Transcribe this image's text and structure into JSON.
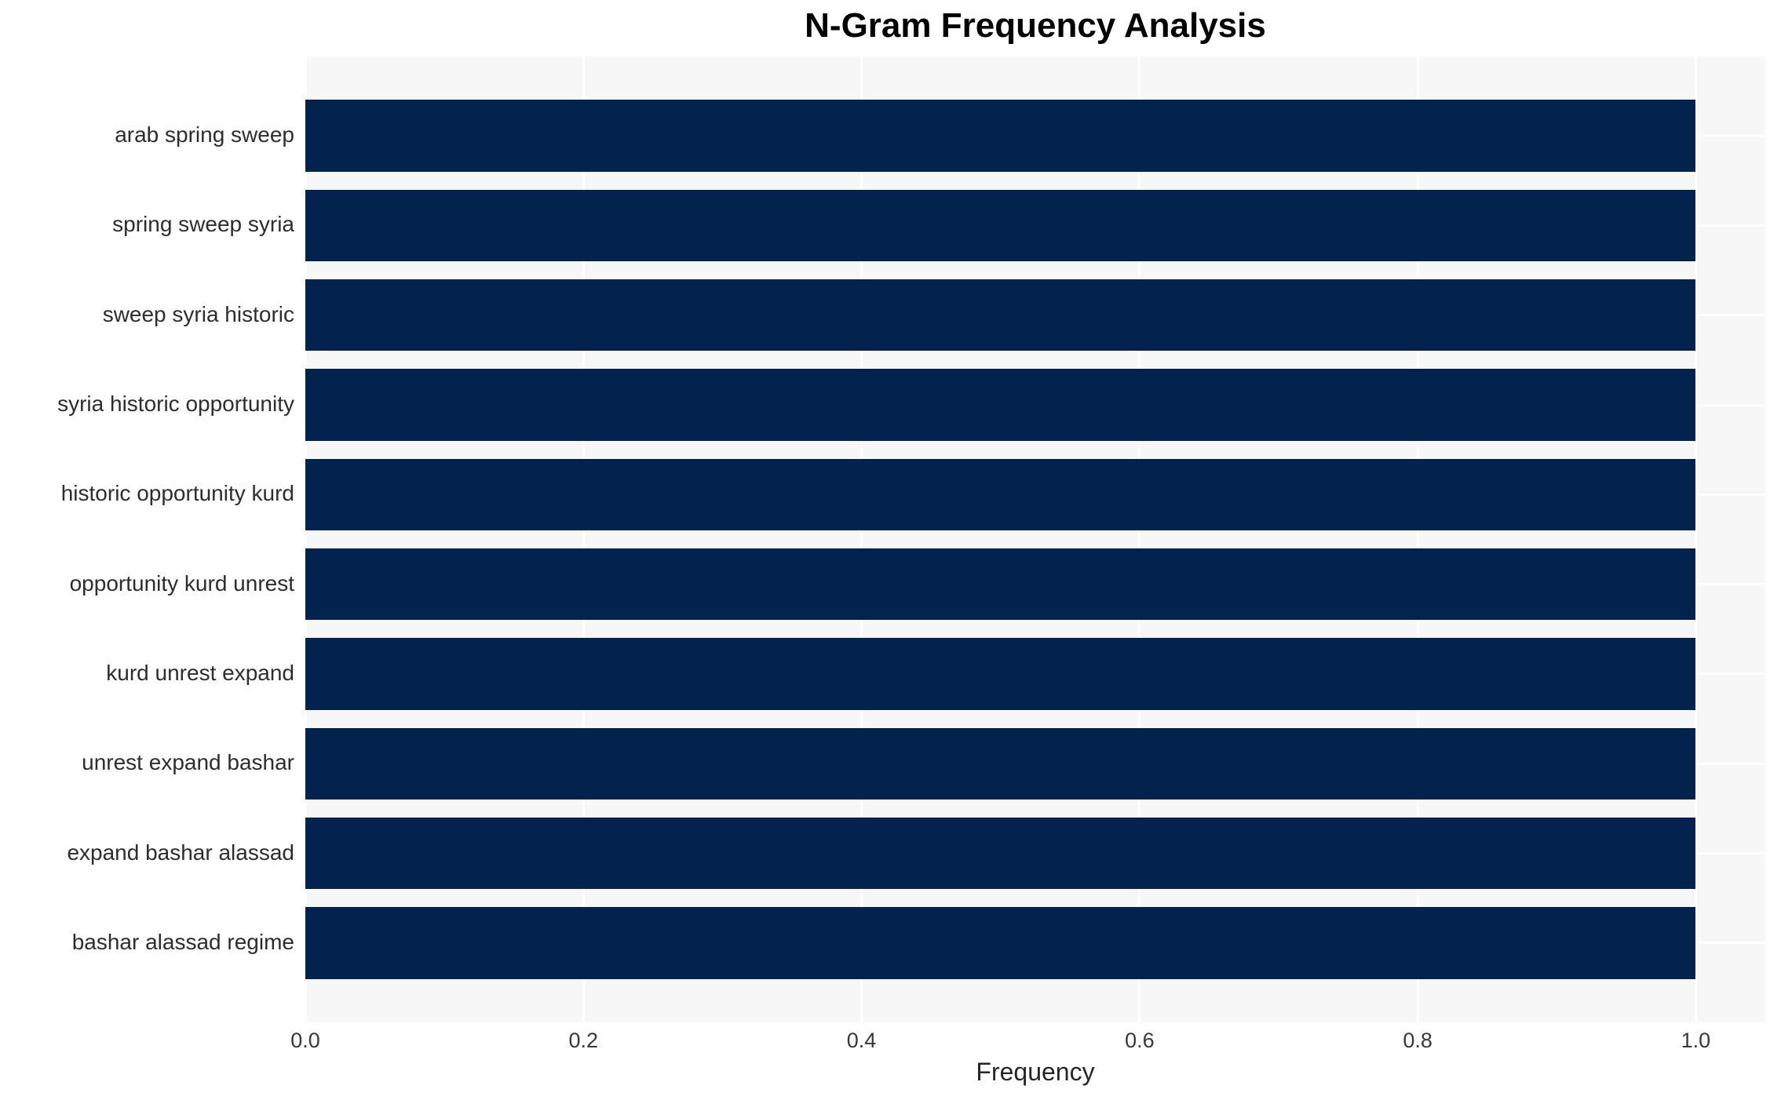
{
  "chart_data": {
    "type": "bar",
    "orientation": "horizontal",
    "title": "N-Gram Frequency Analysis",
    "xlabel": "Frequency",
    "ylabel": "",
    "categories": [
      "arab spring sweep",
      "spring sweep syria",
      "sweep syria historic",
      "syria historic opportunity",
      "historic opportunity kurd",
      "opportunity kurd unrest",
      "kurd unrest expand",
      "unrest expand bashar",
      "expand bashar alassad",
      "bashar alassad regime"
    ],
    "values": [
      1.0,
      1.0,
      1.0,
      1.0,
      1.0,
      1.0,
      1.0,
      1.0,
      1.0,
      1.0
    ],
    "xlim": [
      0.0,
      1.05
    ],
    "ylim": [
      -0.885,
      9.885
    ],
    "bar_thickness": 0.8,
    "x_ticks": [
      0.0,
      0.2,
      0.4,
      0.6,
      0.8,
      1.0
    ],
    "x_tick_labels": [
      "0.0",
      "0.2",
      "0.4",
      "0.6",
      "0.8",
      "1.0"
    ],
    "grid": true,
    "legend": false,
    "colors": {
      "bar": "#02234e",
      "plot_bg": "#f7f7f7",
      "grid": "#ffffff",
      "figure_bg": "#ffffff"
    }
  }
}
